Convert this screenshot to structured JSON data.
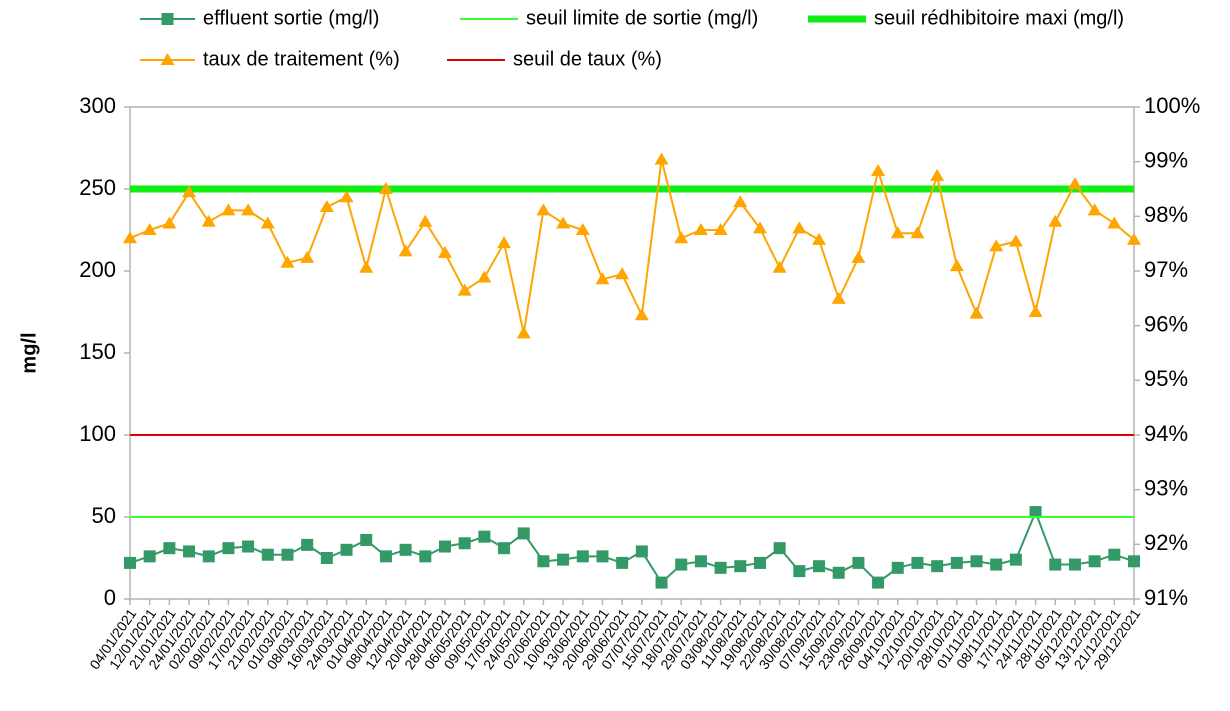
{
  "chart_data": {
    "type": "line",
    "ylabel": "mg/l",
    "categories": [
      "04/01/2021",
      "12/01/2021",
      "21/01/2021",
      "24/01/2021",
      "02/02/2021",
      "09/02/2021",
      "17/02/2021",
      "21/02/2021",
      "01/03/2021",
      "08/03/2021",
      "16/03/2021",
      "24/03/2021",
      "01/04/2021",
      "08/04/2021",
      "12/04/2021",
      "20/04/2021",
      "28/04/2021",
      "06/05/2021",
      "09/05/2021",
      "17/05/2021",
      "24/05/2021",
      "02/06/2021",
      "10/06/2021",
      "13/06/2021",
      "20/06/2021",
      "29/06/2021",
      "07/07/2021",
      "15/07/2021",
      "18/07/2021",
      "29/07/2021",
      "03/08/2021",
      "11/08/2021",
      "19/08/2021",
      "22/08/2021",
      "30/08/2021",
      "07/09/2021",
      "15/09/2021",
      "23/09/2021",
      "26/09/2021",
      "04/10/2021",
      "12/10/2021",
      "20/10/2021",
      "28/10/2021",
      "01/11/2021",
      "08/11/2021",
      "17/11/2021",
      "24/11/2021",
      "28/11/2021",
      "05/12/2021",
      "13/12/2021",
      "21/12/2021",
      "29/12/2021"
    ],
    "series": [
      {
        "name": "effluent sortie (mg/l)",
        "color": "#339966",
        "marker": "square",
        "linewidth": 2,
        "values": [
          22,
          26,
          31,
          29,
          26,
          31,
          32,
          27,
          27,
          33,
          25,
          30,
          36,
          26,
          30,
          26,
          32,
          34,
          38,
          31,
          40,
          23,
          24,
          26,
          26,
          22,
          29,
          10,
          21,
          23,
          19,
          20,
          22,
          31,
          17,
          20,
          16,
          22,
          10,
          19,
          22,
          20,
          22,
          23,
          21,
          24,
          53,
          21,
          21,
          23,
          27,
          23
        ]
      },
      {
        "name": "seuil limite de sortie (mg/l)",
        "color": "#33ff33",
        "linewidth": 2,
        "values": [
          50,
          50,
          50,
          50,
          50,
          50,
          50,
          50,
          50,
          50,
          50,
          50,
          50,
          50,
          50,
          50,
          50,
          50,
          50,
          50,
          50,
          50,
          50,
          50,
          50,
          50,
          50,
          50,
          50,
          50,
          50,
          50,
          50,
          50,
          50,
          50,
          50,
          50,
          50,
          50,
          50,
          50,
          50,
          50,
          50,
          50,
          50,
          50,
          50,
          50,
          50,
          50
        ]
      },
      {
        "name": "seuil rédhibitoire maxi (mg/l)",
        "color": "#11ee11",
        "linewidth": 7,
        "values": [
          250,
          250,
          250,
          250,
          250,
          250,
          250,
          250,
          250,
          250,
          250,
          250,
          250,
          250,
          250,
          250,
          250,
          250,
          250,
          250,
          250,
          250,
          250,
          250,
          250,
          250,
          250,
          250,
          250,
          250,
          250,
          250,
          250,
          250,
          250,
          250,
          250,
          250,
          250,
          250,
          250,
          250,
          250,
          250,
          250,
          250,
          250,
          250,
          250,
          250,
          250,
          250
        ]
      },
      {
        "name": "taux de traitement (%)",
        "color": "#ffa500",
        "marker": "triangle",
        "linewidth": 2,
        "axis": "y2",
        "values": [
          97.6,
          97.75,
          97.87,
          98.44,
          97.9,
          98.11,
          98.11,
          97.87,
          97.15,
          97.24,
          98.17,
          98.35,
          97.06,
          98.5,
          97.36,
          97.9,
          97.33,
          96.64,
          96.88,
          97.51,
          95.86,
          98.11,
          97.87,
          97.75,
          96.85,
          96.94,
          96.19,
          99.04,
          97.6,
          97.75,
          97.75,
          98.26,
          97.78,
          97.06,
          97.78,
          97.57,
          96.49,
          97.24,
          98.83,
          97.69,
          97.69,
          98.74,
          97.09,
          96.22,
          97.45,
          97.54,
          96.25,
          97.9,
          98.59,
          98.11,
          97.87,
          97.57
        ]
      },
      {
        "name": "seuil de taux (%)",
        "color": "#e00000",
        "linewidth": 2,
        "axis": "y2",
        "values": [
          94,
          94,
          94,
          94,
          94,
          94,
          94,
          94,
          94,
          94,
          94,
          94,
          94,
          94,
          94,
          94,
          94,
          94,
          94,
          94,
          94,
          94,
          94,
          94,
          94,
          94,
          94,
          94,
          94,
          94,
          94,
          94,
          94,
          94,
          94,
          94,
          94,
          94,
          94,
          94,
          94,
          94,
          94,
          94,
          94,
          94,
          94,
          94,
          94,
          94,
          94,
          94
        ]
      }
    ],
    "ylim": [
      0,
      300
    ],
    "yticks": [
      0,
      50,
      100,
      150,
      200,
      250,
      300
    ],
    "y2lim": [
      91,
      100
    ],
    "y2ticks": [
      {
        "value": 91,
        "label": "91%"
      },
      {
        "value": 92,
        "label": "92%"
      },
      {
        "value": 93,
        "label": "93%"
      },
      {
        "value": 94,
        "label": "94%"
      },
      {
        "value": 95,
        "label": "95%"
      },
      {
        "value": 96,
        "label": "96%"
      },
      {
        "value": 97,
        "label": "97%"
      },
      {
        "value": 98,
        "label": "98%"
      },
      {
        "value": 99,
        "label": "99%"
      },
      {
        "value": 100,
        "label": "100%"
      }
    ],
    "grid": false,
    "legend": "top"
  }
}
